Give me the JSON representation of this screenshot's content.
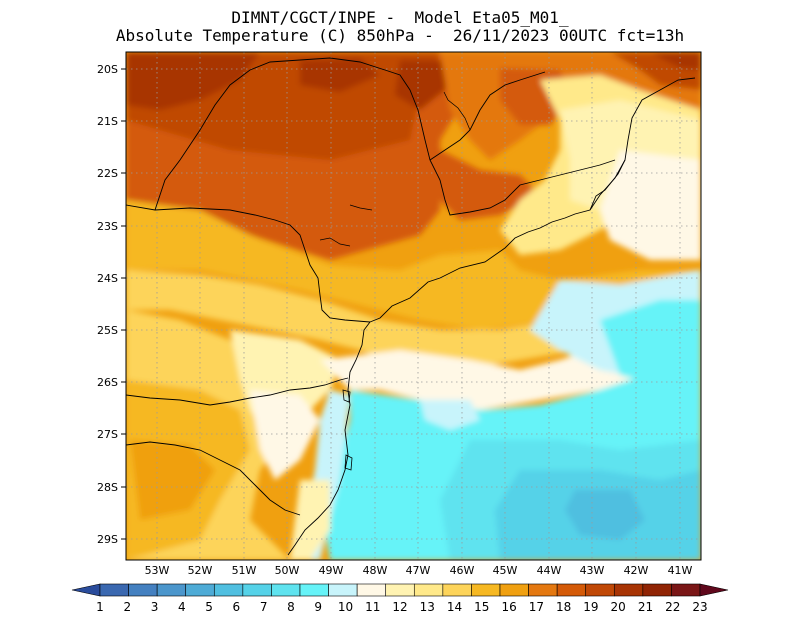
{
  "header": {
    "line1": "DIMNT/CGCT/INPE -  Model Eta05_M01_",
    "line2": "Absolute Temperature (C) 850hPa -  26/11/2023 00UTC fct=13h"
  },
  "map": {
    "lat_labels": [
      "20S",
      "21S",
      "22S",
      "23S",
      "24S",
      "25S",
      "26S",
      "27S",
      "28S",
      "29S"
    ],
    "lon_labels": [
      "53W",
      "52W",
      "51W",
      "50W",
      "49W",
      "48W",
      "47W",
      "46W",
      "45W",
      "44W",
      "43W",
      "42W",
      "41W"
    ],
    "grid": "dotted",
    "field": "temperature-850hPa"
  },
  "colorbar": {
    "labels": [
      "1",
      "2",
      "3",
      "4",
      "5",
      "6",
      "7",
      "8",
      "9",
      "10",
      "11",
      "12",
      "13",
      "14",
      "15",
      "16",
      "17",
      "18",
      "19",
      "20",
      "21",
      "22",
      "23"
    ],
    "colors": [
      "#2a4c9c",
      "#3a68b0",
      "#4480c0",
      "#4b96cc",
      "#4eabd6",
      "#50bfe0",
      "#55d2e8",
      "#5fe3ef",
      "#66f3f8",
      "#c8f4fb",
      "#fff8e6",
      "#fff3b2",
      "#ffe98a",
      "#fdd45a",
      "#f6b822",
      "#f0a010",
      "#e47810",
      "#d45a08",
      "#c04806",
      "#a83404",
      "#902404",
      "#7a1616",
      "#60081c"
    ]
  }
}
